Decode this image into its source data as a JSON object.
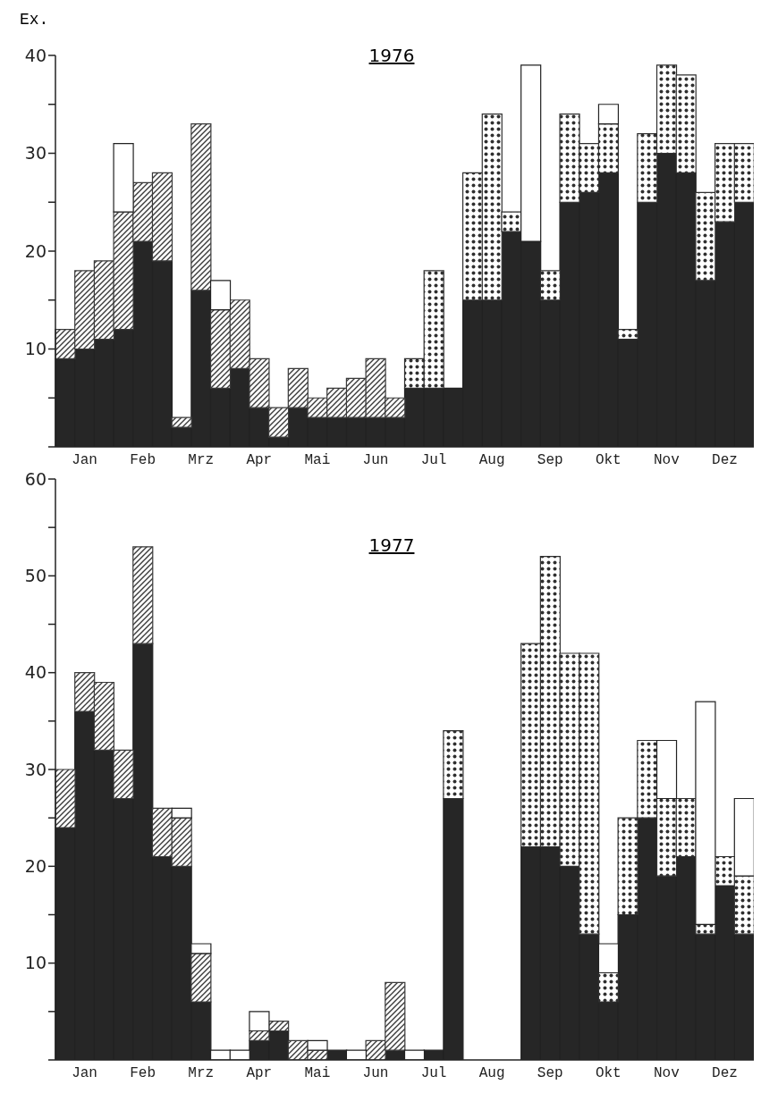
{
  "chart_data": [
    {
      "type": "bar",
      "title": "1976",
      "ylabel": "Ex.",
      "stacked": true,
      "categories": [
        null,
        "Jan",
        null,
        null,
        "Feb",
        null,
        null,
        "Mrz",
        null,
        null,
        "Apr",
        null,
        null,
        "Mai",
        null,
        null,
        "Jun",
        null,
        null,
        "Jul",
        null,
        null,
        "Aug",
        null,
        null,
        "Sep",
        null,
        null,
        "Okt",
        null,
        null,
        "Nov",
        null,
        null,
        "Dez",
        null
      ],
      "series": [
        {
          "color": "#262626",
          "values": [
            9,
            10,
            11,
            12,
            21,
            19,
            2,
            16,
            6,
            8,
            4,
            1,
            4,
            3,
            3,
            3,
            3,
            3,
            6,
            6,
            6,
            15,
            15,
            22,
            21,
            15,
            25,
            26,
            28,
            11,
            25,
            30,
            28,
            17,
            23,
            25
          ]
        },
        {
          "color": "#3a3a3a",
          "values": [
            3,
            8,
            8,
            12,
            6,
            9,
            1,
            17,
            8,
            7,
            5,
            3,
            4,
            2,
            3,
            4,
            6,
            2,
            null,
            null,
            null,
            null,
            null,
            null,
            null,
            null,
            null,
            null,
            null,
            null,
            null,
            null,
            null,
            null,
            null,
            null
          ]
        },
        {
          "color": "#303030",
          "values": [
            null,
            null,
            null,
            null,
            null,
            null,
            null,
            null,
            null,
            null,
            null,
            null,
            null,
            null,
            null,
            null,
            null,
            null,
            3,
            12,
            null,
            13,
            19,
            2,
            null,
            3,
            9,
            5,
            5,
            1,
            7,
            9,
            10,
            9,
            8,
            6
          ]
        },
        {
          "color": "#ffffff",
          "values": [
            null,
            null,
            null,
            7,
            null,
            null,
            null,
            null,
            3,
            null,
            null,
            null,
            null,
            null,
            null,
            null,
            null,
            null,
            null,
            null,
            null,
            null,
            null,
            null,
            18,
            null,
            null,
            null,
            2,
            null,
            null,
            null,
            null,
            null,
            null,
            null
          ]
        }
      ],
      "ylim": [
        0,
        40
      ],
      "yticks": [
        {
          "value": 0,
          "label": null
        },
        {
          "value": 5,
          "label": null
        },
        10,
        {
          "value": 15,
          "label": null
        },
        20,
        {
          "value": 25,
          "label": null
        },
        30,
        {
          "value": 35,
          "label": null
        },
        40
      ]
    },
    {
      "type": "bar",
      "title": "1977",
      "stacked": true,
      "categories": [
        null,
        "Jan",
        null,
        null,
        "Feb",
        null,
        null,
        "Mrz",
        null,
        null,
        "Apr",
        null,
        null,
        "Mai",
        null,
        null,
        "Jun",
        null,
        null,
        "Jul",
        null,
        null,
        "Aug",
        null,
        null,
        "Sep",
        null,
        null,
        "Okt",
        null,
        null,
        "Nov",
        null,
        null,
        "Dez",
        null
      ],
      "series": [
        {
          "color": "#262626",
          "values": [
            24,
            36,
            32,
            27,
            43,
            21,
            20,
            6,
            null,
            null,
            2,
            3,
            null,
            null,
            1,
            null,
            null,
            1,
            null,
            1,
            27,
            null,
            null,
            null,
            22,
            22,
            20,
            13,
            6,
            15,
            25,
            19,
            21,
            13,
            18,
            13
          ]
        },
        {
          "color": "#3a3a3a",
          "values": [
            6,
            4,
            7,
            5,
            10,
            5,
            5,
            5,
            null,
            null,
            1,
            1,
            2,
            1,
            null,
            null,
            2,
            7,
            null,
            null,
            null,
            null,
            null,
            null,
            null,
            null,
            null,
            null,
            null,
            null,
            null,
            null,
            null,
            null,
            null,
            null
          ]
        },
        {
          "color": "#303030",
          "values": [
            null,
            null,
            null,
            null,
            null,
            null,
            null,
            null,
            null,
            null,
            null,
            null,
            null,
            null,
            null,
            null,
            null,
            null,
            null,
            null,
            7,
            null,
            null,
            null,
            21,
            30,
            22,
            29,
            3,
            10,
            8,
            8,
            6,
            1,
            3,
            6
          ]
        },
        {
          "color": "#ffffff",
          "values": [
            null,
            null,
            null,
            null,
            null,
            null,
            1,
            1,
            1,
            1,
            2,
            null,
            null,
            1,
            null,
            1,
            null,
            null,
            1,
            null,
            null,
            null,
            null,
            null,
            null,
            null,
            null,
            null,
            3,
            null,
            null,
            6,
            null,
            23,
            null,
            8
          ]
        }
      ],
      "ylim": [
        0,
        60
      ],
      "yticks": [
        {
          "value": 0,
          "label": null
        },
        {
          "value": 5,
          "label": null
        },
        10,
        {
          "value": 15,
          "label": null
        },
        20,
        {
          "value": 25,
          "label": null
        },
        30,
        {
          "value": 35,
          "label": null
        },
        40,
        {
          "value": 45,
          "label": null
        },
        50,
        {
          "value": 55,
          "label": null
        },
        60
      ]
    }
  ]
}
